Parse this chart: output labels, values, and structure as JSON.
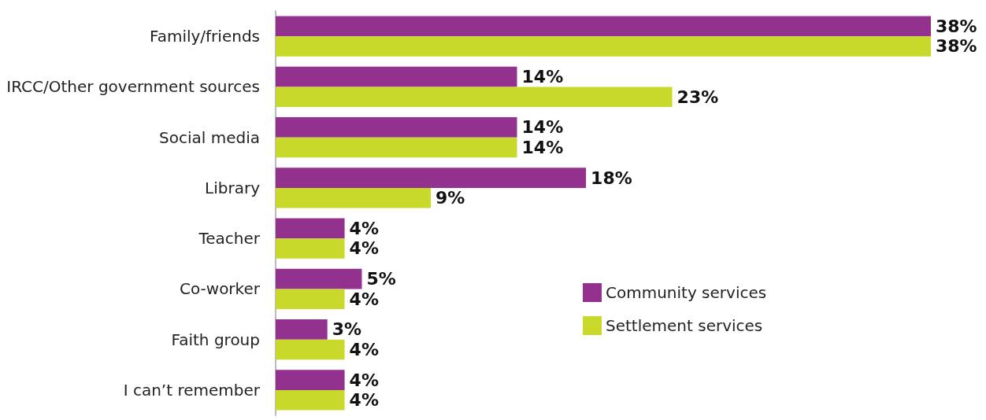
{
  "chart_data": {
    "type": "bar",
    "orientation": "horizontal",
    "categories": [
      "Family/friends",
      "IRCC/Other government sources",
      "Social media",
      "Library",
      "Teacher",
      "Co-worker",
      "Faith group",
      "I can’t remember"
    ],
    "series": [
      {
        "name": "Community services",
        "color": "#93328e",
        "values": [
          38,
          14,
          14,
          18,
          4,
          5,
          3,
          4
        ],
        "value_labels": [
          "38%",
          "14%",
          "14%",
          "18%",
          "4%",
          "5%",
          "3%",
          "4%"
        ]
      },
      {
        "name": "Settlement services",
        "color": "#c8d92b",
        "values": [
          38,
          23,
          14,
          9,
          4,
          4,
          4,
          4
        ],
        "value_labels": [
          "38%",
          "23%",
          "14%",
          "9%",
          "4%",
          "4%",
          "4%",
          "4%"
        ]
      }
    ],
    "legend": "right"
  }
}
